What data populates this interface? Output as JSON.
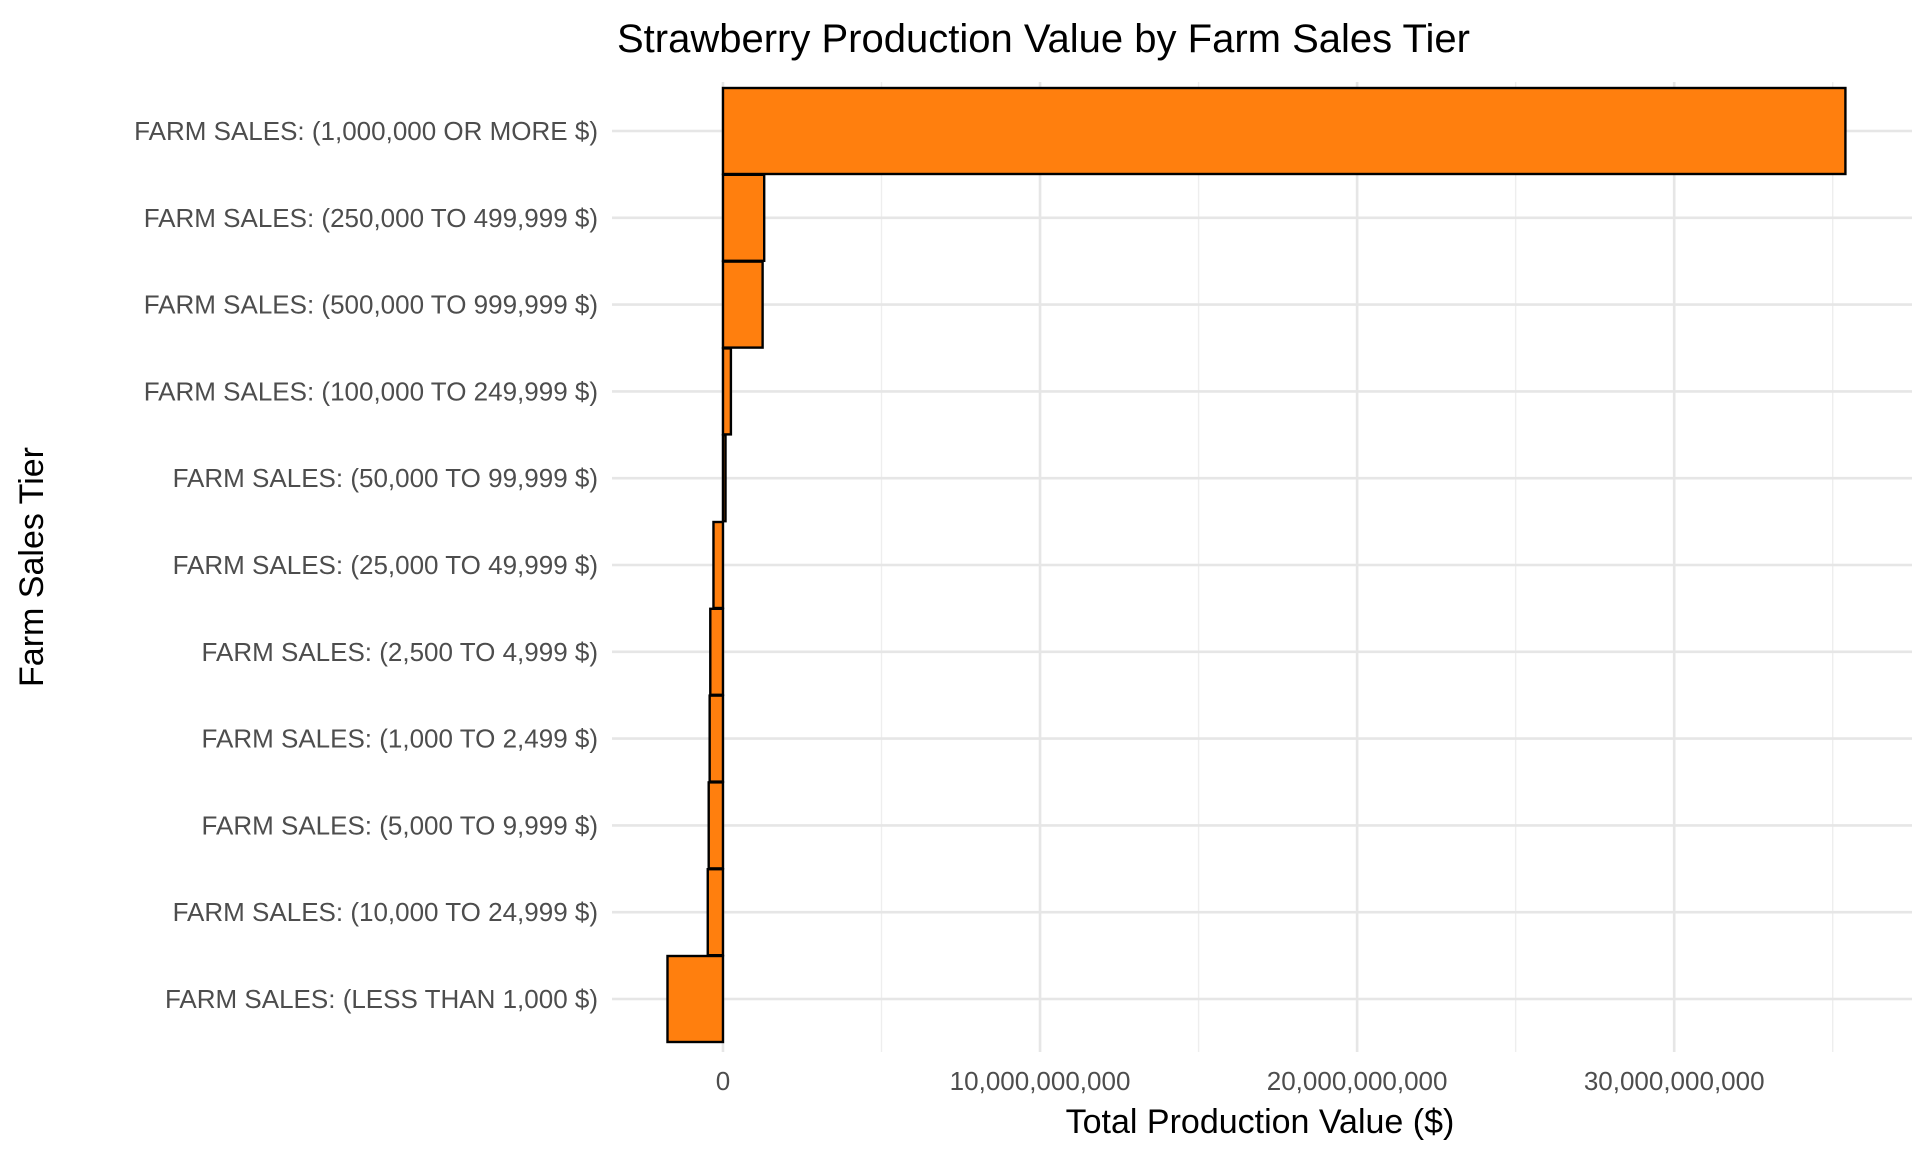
{
  "chart_data": {
    "type": "bar",
    "orientation": "horizontal",
    "title": "Strawberry Production Value by Farm Sales Tier",
    "xlabel": "Total Production Value ($)",
    "ylabel": "Farm Sales Tier",
    "xlim": [
      -3500000000,
      37500000000
    ],
    "x_ticks": [
      0,
      10000000000,
      20000000000,
      30000000000
    ],
    "x_tick_labels": [
      "0",
      "10,000,000,000",
      "20,000,000,000",
      "30,000,000,000"
    ],
    "grid": true,
    "bar_color": "#FF7F0E",
    "bar_edge_color": "#000000",
    "categories": [
      "FARM SALES: (1,000,000 OR MORE $)",
      "FARM SALES: (250,000 TO 499,999 $)",
      "FARM SALES: (500,000 TO 999,999 $)",
      "FARM SALES: (100,000 TO 249,999 $)",
      "FARM SALES: (50,000 TO 99,999 $)",
      "FARM SALES: (25,000 TO 49,999 $)",
      "FARM SALES: (2,500 TO 4,999 $)",
      "FARM SALES: (1,000 TO 2,499 $)",
      "FARM SALES: (5,000 TO 9,999 $)",
      "FARM SALES: (10,000 TO 24,999 $)",
      "FARM SALES: (LESS THAN 1,000 $)"
    ],
    "values": [
      35400000000,
      1300000000,
      1250000000,
      250000000,
      80000000,
      -300000000,
      -400000000,
      -420000000,
      -450000000,
      -480000000,
      -1750000000
    ]
  }
}
